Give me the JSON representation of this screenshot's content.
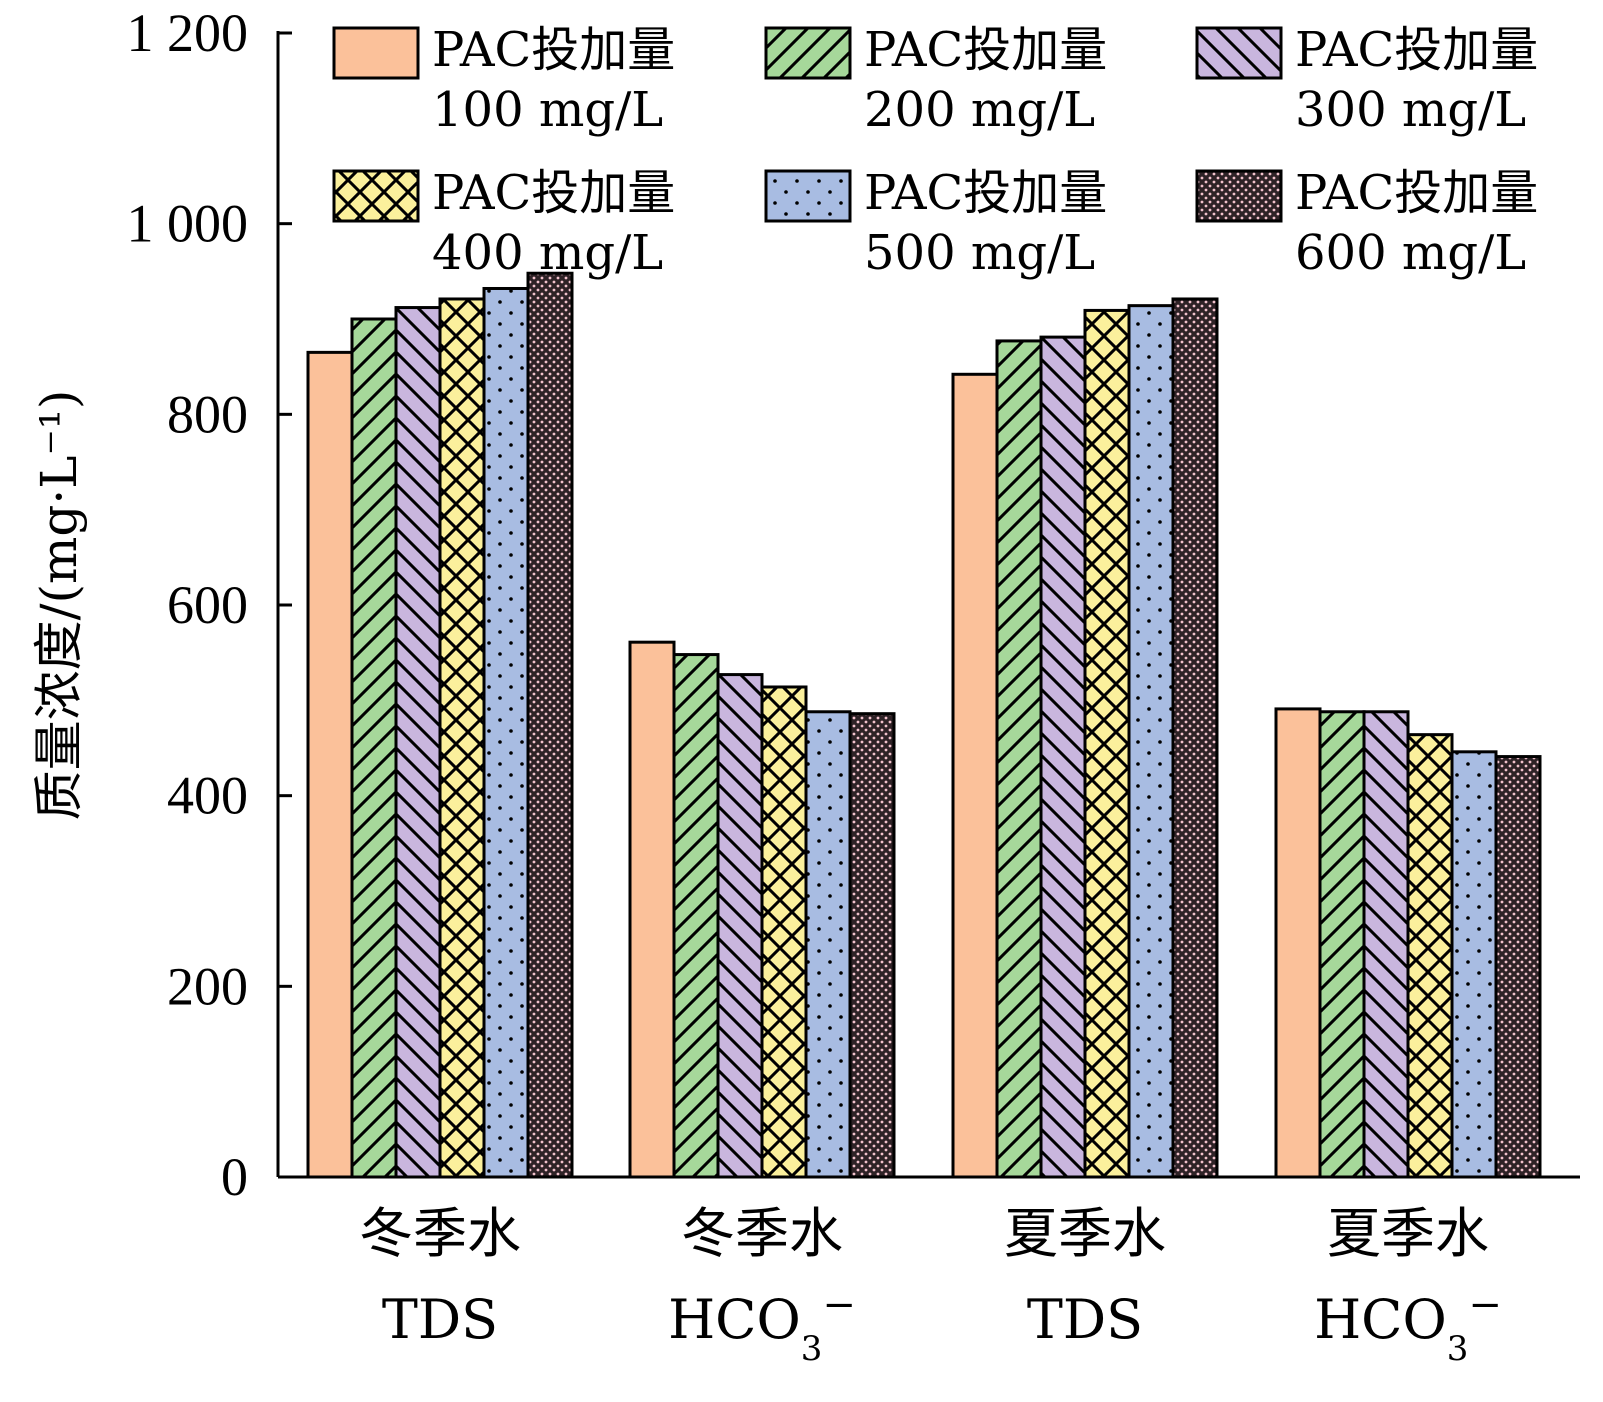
{
  "chart_data": {
    "type": "bar",
    "ylabel": "质量浓度/(mg·L⁻¹)",
    "ylim": [
      0,
      1200
    ],
    "yticks": [
      0,
      200,
      400,
      600,
      800,
      1000,
      1200
    ],
    "ytick_labels": [
      "0",
      "200",
      "400",
      "600",
      "800",
      "1 000",
      "1 200"
    ],
    "categories": [
      {
        "line1": "冬季水",
        "line2": "TDS",
        "sub": "",
        "sup": ""
      },
      {
        "line1": "冬季水",
        "line2": "HCO",
        "sub": "3",
        "sup": "−"
      },
      {
        "line1": "夏季水",
        "line2": "TDS",
        "sub": "",
        "sup": ""
      },
      {
        "line1": "夏季水",
        "line2": "HCO",
        "sub": "3",
        "sup": "−"
      }
    ],
    "series": [
      {
        "name_line1": "PAC投加量",
        "name_line2": "100 mg/L",
        "color": "#FBC19A",
        "pattern": "solid",
        "values": [
          865,
          561,
          842,
          491
        ]
      },
      {
        "name_line1": "PAC投加量",
        "name_line2": "200 mg/L",
        "color": "#A6D89A",
        "pattern": "forward-hatch",
        "values": [
          900,
          548,
          877,
          488
        ]
      },
      {
        "name_line1": "PAC投加量",
        "name_line2": "300 mg/L",
        "color": "#C9B6DE",
        "pattern": "back-hatch",
        "values": [
          912,
          527,
          881,
          488
        ]
      },
      {
        "name_line1": "PAC投加量",
        "name_line2": "400 mg/L",
        "color": "#FBF09C",
        "pattern": "crosshatch",
        "values": [
          921,
          514,
          909,
          464
        ]
      },
      {
        "name_line1": "PAC投加量",
        "name_line2": "500 mg/L",
        "color": "#A8BCE2",
        "pattern": "dots",
        "values": [
          932,
          488,
          914,
          446
        ]
      },
      {
        "name_line1": "PAC投加量",
        "name_line2": "600 mg/L",
        "color": "#3A2A2E",
        "pattern": "dense-dots",
        "values": [
          948,
          486,
          921,
          441
        ]
      }
    ],
    "legend_placement": "top",
    "grid": false
  }
}
